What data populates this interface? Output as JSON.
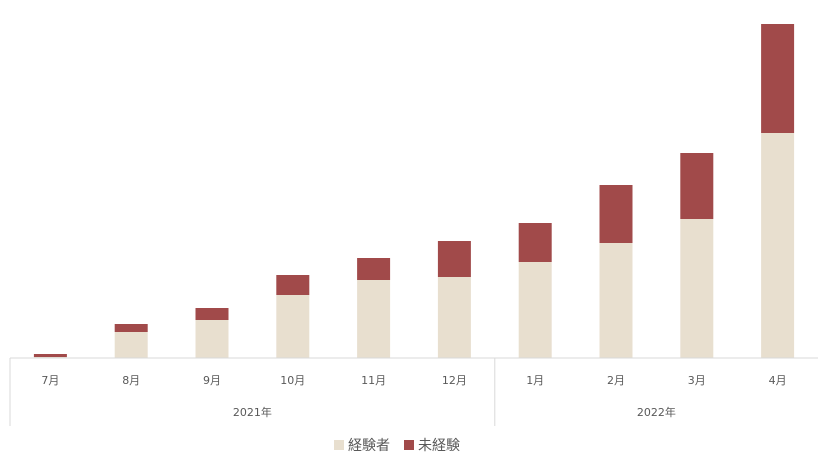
{
  "chart_data": {
    "type": "stacked_bar",
    "categories": [
      "7月",
      "8月",
      "9月",
      "10月",
      "11月",
      "12月",
      "1月",
      "2月",
      "3月",
      "4月"
    ],
    "groups": [
      {
        "label": "2021年",
        "count": 6
      },
      {
        "label": "2022年",
        "count": 4
      }
    ],
    "series": [
      {
        "name": "経験者",
        "color": "#e8dfcf",
        "values": [
          1,
          26,
          38,
          63,
          78,
          81,
          96,
          115,
          139,
          225
        ]
      },
      {
        "name": "未経験",
        "color": "#a14a4a",
        "values": [
          3,
          8,
          12,
          20,
          22,
          36,
          39,
          58,
          66,
          109
        ]
      }
    ],
    "ylim": [
      0,
      334
    ]
  }
}
